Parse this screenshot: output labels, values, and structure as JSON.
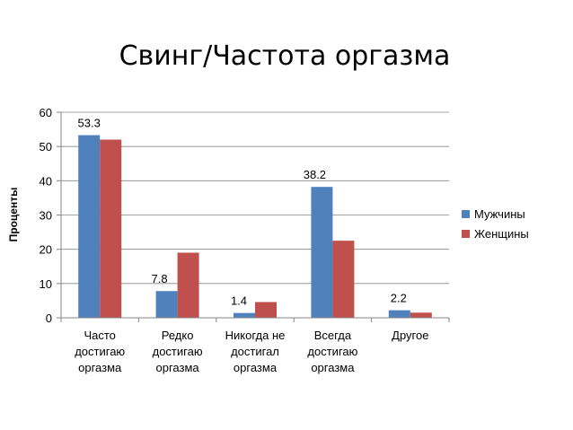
{
  "chart_data": {
    "type": "bar",
    "title": "Свинг/Частота оргазма",
    "ylabel": "Проценты",
    "xlabel": "",
    "ylim": [
      0,
      60
    ],
    "yticks": [
      0,
      10,
      20,
      30,
      40,
      50,
      60
    ],
    "grid": true,
    "legend_position": "right",
    "categories": [
      [
        "Часто",
        "достигаю",
        "оргазма"
      ],
      [
        "Редко",
        "достигаю",
        "оргазма"
      ],
      [
        "Никогда не",
        "достигал",
        "оргазма"
      ],
      [
        "Всегда",
        "достигаю",
        "оргазма"
      ],
      [
        "Другое"
      ]
    ],
    "series": [
      {
        "name": "Мужчины",
        "color": "#4F81BD",
        "values": [
          53.3,
          7.8,
          1.4,
          38.2,
          2.2
        ],
        "data_labels": [
          "53.3",
          "7.8",
          "1.4",
          "38.2",
          "2.2"
        ]
      },
      {
        "name": "Женщины",
        "color": "#C0504D",
        "values": [
          52,
          19,
          4.6,
          22.5,
          1.5
        ]
      }
    ]
  }
}
